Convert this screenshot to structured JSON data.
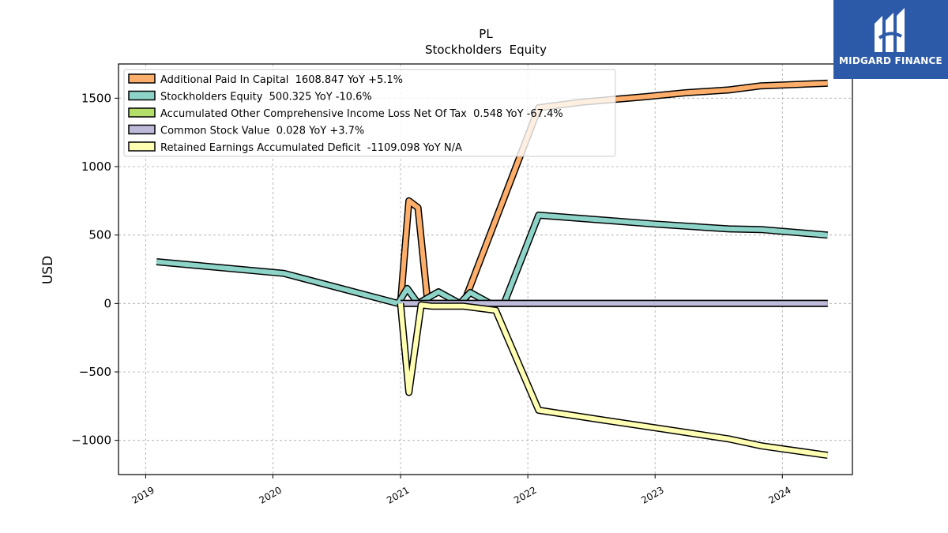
{
  "chart_data": {
    "type": "line",
    "title": "PL",
    "subtitle": "Stockholders  Equity",
    "ylabel": "USD",
    "xlabel": "",
    "xlim": [
      "2018-10-15",
      "2024-07-20"
    ],
    "ylim": [
      -1250,
      1750
    ],
    "y_ticks": [
      -1000,
      -500,
      0,
      500,
      1000,
      1500
    ],
    "x_ticks": [
      "2019",
      "2020",
      "2021",
      "2022",
      "2023",
      "2024"
    ],
    "grid": true,
    "legend_position": "top-left",
    "series": [
      {
        "name": "Additional Paid In Capital  1608.847 YoY +5.1%",
        "color": "#fdae6b",
        "points": [
          [
            "2021-01-01",
            0
          ],
          [
            "2021-01-25",
            750
          ],
          [
            "2021-02-20",
            700
          ],
          [
            "2021-03-20",
            0
          ],
          [
            "2021-05-15",
            0
          ],
          [
            "2021-07-01",
            0
          ],
          [
            "2022-02-01",
            1430
          ],
          [
            "2022-06-01",
            1470
          ],
          [
            "2022-12-01",
            1510
          ],
          [
            "2023-04-01",
            1540
          ],
          [
            "2023-08-01",
            1560
          ],
          [
            "2023-11-01",
            1590
          ],
          [
            "2024-05-10",
            1609
          ]
        ]
      },
      {
        "name": "Stockholders Equity  500.325 YoY -10.6%",
        "color": "#8dd3c7",
        "points": [
          [
            "2019-02-01",
            305
          ],
          [
            "2020-02-01",
            220
          ],
          [
            "2020-12-25",
            0
          ],
          [
            "2021-01-20",
            110
          ],
          [
            "2021-02-20",
            0
          ],
          [
            "2021-04-20",
            85
          ],
          [
            "2021-06-20",
            0
          ],
          [
            "2021-07-20",
            80
          ],
          [
            "2021-09-15",
            0
          ],
          [
            "2021-10-25",
            0
          ],
          [
            "2022-02-01",
            645
          ],
          [
            "2022-08-01",
            610
          ],
          [
            "2023-01-01",
            580
          ],
          [
            "2023-08-01",
            545
          ],
          [
            "2023-11-01",
            540
          ],
          [
            "2024-05-10",
            500
          ]
        ]
      },
      {
        "name": "Accumulated Other Comprehensive Income Loss Net Of Tax  0.548 YoY -67.4%",
        "color": "#b3de69",
        "points": [
          [
            "2021-01-01",
            0
          ],
          [
            "2021-05-01",
            0
          ],
          [
            "2021-10-01",
            0
          ],
          [
            "2022-02-01",
            1
          ],
          [
            "2023-02-01",
            1
          ],
          [
            "2024-05-10",
            0.548
          ]
        ]
      },
      {
        "name": "Common Stock Value  0.028 YoY +3.7%",
        "color": "#bebada",
        "points": [
          [
            "2021-01-01",
            0
          ],
          [
            "2022-02-01",
            0
          ],
          [
            "2023-02-01",
            0
          ],
          [
            "2024-05-10",
            0.028
          ]
        ]
      },
      {
        "name": "Retained Earnings Accumulated Deficit  -1109.098 YoY N/A",
        "color": "#ffffb3",
        "points": [
          [
            "2021-01-01",
            0
          ],
          [
            "2021-01-25",
            -650
          ],
          [
            "2021-03-01",
            -10
          ],
          [
            "2021-04-01",
            -20
          ],
          [
            "2021-07-01",
            -20
          ],
          [
            "2021-10-01",
            -50
          ],
          [
            "2022-02-01",
            -780
          ],
          [
            "2022-08-01",
            -850
          ],
          [
            "2023-02-01",
            -920
          ],
          [
            "2023-08-01",
            -990
          ],
          [
            "2023-11-01",
            -1040
          ],
          [
            "2024-05-10",
            -1109
          ]
        ]
      }
    ]
  },
  "brand": {
    "name": "MIDGARD FINANCE",
    "bg_color": "#2d5aa8",
    "icon": "midgard-logo-icon"
  }
}
